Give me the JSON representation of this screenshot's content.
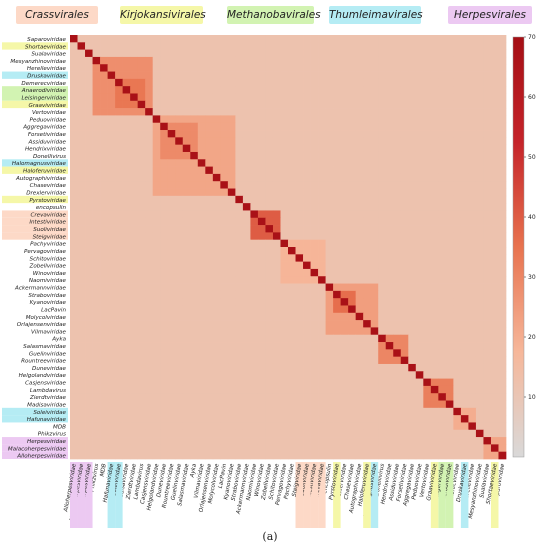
{
  "chart_data": {
    "type": "heatmap",
    "title": "",
    "caption": "(a)",
    "order_labels": [
      {
        "name": "Crassvirales",
        "color": "#fdd9c7"
      },
      {
        "name": "Kirjokansivirales",
        "color": "#f5f7a8"
      },
      {
        "name": "Methanobavirales",
        "color": "#d2f3b2"
      },
      {
        "name": "Thumleimavirales",
        "color": "#b5ecf4"
      },
      {
        "name": "Herpesvirales",
        "color": "#ecc9f2"
      }
    ],
    "taxa": [
      {
        "name": "Saparoviridae",
        "highlight": ""
      },
      {
        "name": "Shortaeviridae",
        "highlight": "Kirjokansivirales"
      },
      {
        "name": "Sualaviridae",
        "highlight": ""
      },
      {
        "name": "Mesyanzhinoviridae",
        "highlight": ""
      },
      {
        "name": "Herelleviridae",
        "highlight": ""
      },
      {
        "name": "Druskaviridae",
        "highlight": "Thumleimavirales"
      },
      {
        "name": "Demerecviridae",
        "highlight": ""
      },
      {
        "name": "Anaerodiviridae",
        "highlight": "Methanobavirales"
      },
      {
        "name": "Leisingerviridae",
        "highlight": "Methanobavirales"
      },
      {
        "name": "Graaviviridae",
        "highlight": "Kirjokansivirales"
      },
      {
        "name": "Vertoviridae",
        "highlight": ""
      },
      {
        "name": "Peduoviridae",
        "highlight": ""
      },
      {
        "name": "Aggregaviridae",
        "highlight": ""
      },
      {
        "name": "Forsetiviridae",
        "highlight": ""
      },
      {
        "name": "Assiduviridae",
        "highlight": ""
      },
      {
        "name": "Hendrixviridae",
        "highlight": ""
      },
      {
        "name": "Donellivirus",
        "highlight": ""
      },
      {
        "name": "Halomagnusviridae",
        "highlight": "Thumleimavirales"
      },
      {
        "name": "Haloferuviridae",
        "highlight": "Kirjokansivirales"
      },
      {
        "name": "Autographiviridae",
        "highlight": ""
      },
      {
        "name": "Chaseviridae",
        "highlight": ""
      },
      {
        "name": "Drexlerviridae",
        "highlight": ""
      },
      {
        "name": "Pyrstoviridae",
        "highlight": "Kirjokansivirales"
      },
      {
        "name": "encopsulin",
        "highlight": ""
      },
      {
        "name": "Crevaviridae",
        "highlight": "Crassvirales"
      },
      {
        "name": "Intestiviridae",
        "highlight": "Crassvirales"
      },
      {
        "name": "Suoliviridae",
        "highlight": "Crassvirales"
      },
      {
        "name": "Steigviridae",
        "highlight": "Crassvirales"
      },
      {
        "name": "Pachyviridae",
        "highlight": ""
      },
      {
        "name": "Pervagoviridae",
        "highlight": ""
      },
      {
        "name": "Schitoviridae",
        "highlight": ""
      },
      {
        "name": "Zobellviridae",
        "highlight": ""
      },
      {
        "name": "Winoviridae",
        "highlight": ""
      },
      {
        "name": "Naomiviridae",
        "highlight": ""
      },
      {
        "name": "Ackermannviridae",
        "highlight": ""
      },
      {
        "name": "Straboviridae",
        "highlight": ""
      },
      {
        "name": "Kyanoviridae",
        "highlight": ""
      },
      {
        "name": "LacPavin",
        "highlight": ""
      },
      {
        "name": "Molycolviridae",
        "highlight": ""
      },
      {
        "name": "Orlajensenviridae",
        "highlight": ""
      },
      {
        "name": "Vilmaviridae",
        "highlight": ""
      },
      {
        "name": "Ayka",
        "highlight": ""
      },
      {
        "name": "Salasmaviridae",
        "highlight": ""
      },
      {
        "name": "Guelinviridae",
        "highlight": ""
      },
      {
        "name": "Rountreeviridae",
        "highlight": ""
      },
      {
        "name": "Duneviridae",
        "highlight": ""
      },
      {
        "name": "Helgolandviridae",
        "highlight": ""
      },
      {
        "name": "Casjensviridae",
        "highlight": ""
      },
      {
        "name": "Lambdavirus",
        "highlight": ""
      },
      {
        "name": "Zierdtviridae",
        "highlight": ""
      },
      {
        "name": "Madisaviridae",
        "highlight": ""
      },
      {
        "name": "Soleiviridae",
        "highlight": "Thumleimavirales"
      },
      {
        "name": "Hafunaviridae",
        "highlight": "Thumleimavirales"
      },
      {
        "name": "MDB",
        "highlight": ""
      },
      {
        "name": "Phikzvirus",
        "highlight": ""
      },
      {
        "name": "Herpesviridae",
        "highlight": "Herpesvirales"
      },
      {
        "name": "Malacoherpesviridae",
        "highlight": "Herpesvirales"
      },
      {
        "name": "Alloherpesviridae",
        "highlight": "Herpesvirales"
      }
    ],
    "value_range": [
      0,
      70
    ],
    "colorbar_ticks": [
      10,
      20,
      30,
      40,
      50,
      60,
      70
    ],
    "colormap": [
      "#d9d9d9",
      "#f6b79a",
      "#e8734f",
      "#c5242a",
      "#a50f15"
    ],
    "diagonal_value": 68,
    "background_value": 12,
    "blocks": [
      {
        "from": 3,
        "to": 10,
        "value": 28
      },
      {
        "from": 6,
        "to": 9,
        "value": 34
      },
      {
        "from": 11,
        "to": 21,
        "value": 22
      },
      {
        "from": 12,
        "to": 16,
        "value": 29
      },
      {
        "from": 24,
        "to": 27,
        "value": 40
      },
      {
        "from": 28,
        "to": 33,
        "value": 18
      },
      {
        "from": 34,
        "to": 40,
        "value": 24
      },
      {
        "from": 35,
        "to": 37,
        "value": 36
      },
      {
        "from": 41,
        "to": 44,
        "value": 30
      },
      {
        "from": 47,
        "to": 50,
        "value": 32
      },
      {
        "from": 51,
        "to": 53,
        "value": 20
      },
      {
        "from": 55,
        "to": 57,
        "value": 22
      }
    ]
  }
}
